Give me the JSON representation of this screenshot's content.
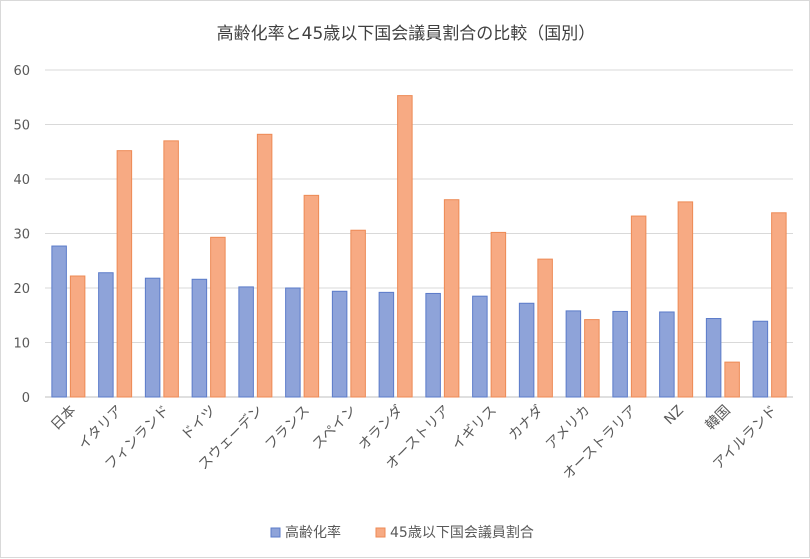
{
  "chart_data": {
    "type": "bar",
    "title": "高齢化率と45歳以下国会議員割合の比較（国別）",
    "categories": [
      "日本",
      "イタリア",
      "フィンランド",
      "ドイツ",
      "スウェーデン",
      "フランス",
      "スペイン",
      "オランダ",
      "オーストリア",
      "イギリス",
      "カナダ",
      "アメリカ",
      "オーストラリア",
      "NZ",
      "韓国",
      "アイルランド"
    ],
    "series": [
      {
        "name": "高齢化率",
        "color": "#8ea3d9",
        "values": [
          27.7,
          22.8,
          21.8,
          21.6,
          20.2,
          20.0,
          19.4,
          19.2,
          19.0,
          18.5,
          17.2,
          15.8,
          15.7,
          15.6,
          14.4,
          13.9
        ]
      },
      {
        "name": "45歳以下国会議員割合",
        "color": "#f7aa83",
        "values": [
          22.2,
          45.2,
          47.0,
          29.3,
          48.2,
          37.0,
          30.6,
          55.3,
          36.2,
          30.2,
          25.3,
          14.2,
          33.2,
          35.8,
          6.4,
          33.8
        ]
      }
    ],
    "ylim": [
      0,
      60
    ],
    "yticks": [
      0,
      10,
      20,
      30,
      40,
      50,
      60
    ],
    "grid": true,
    "legend_position": "bottom"
  }
}
